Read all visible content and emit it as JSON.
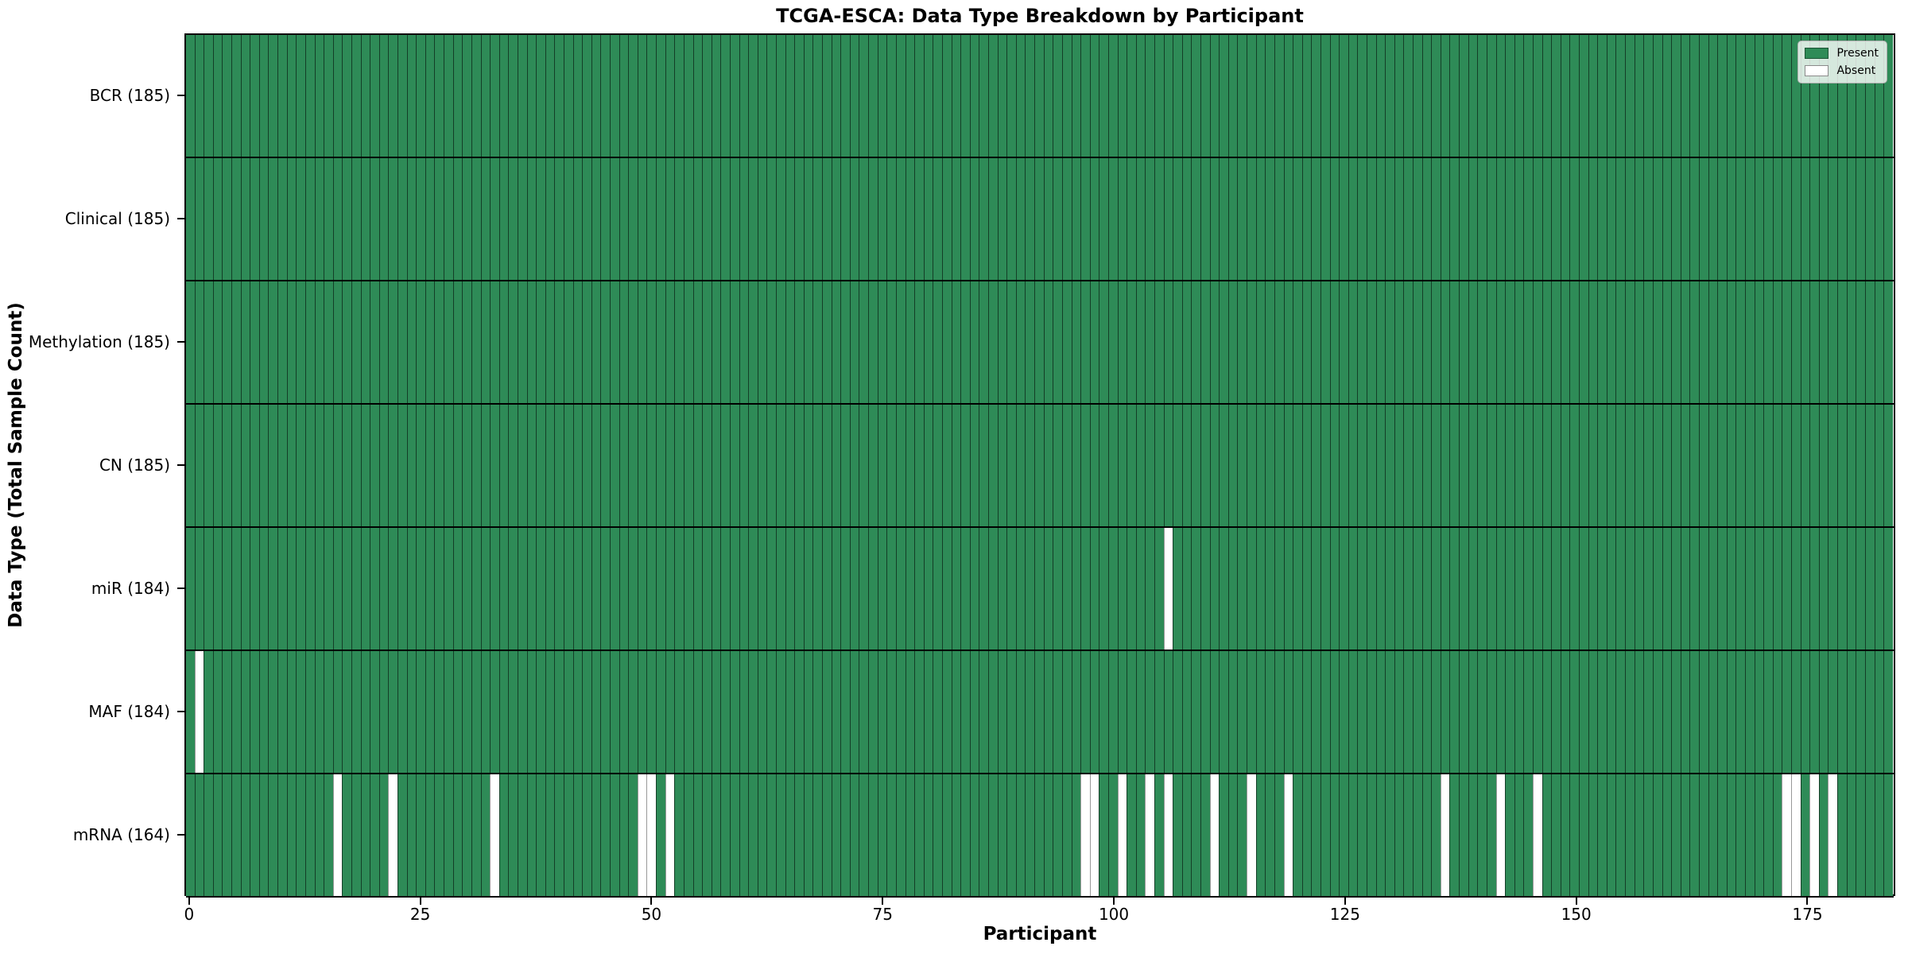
{
  "chart_data": {
    "type": "heatmap",
    "title": "TCGA-ESCA: Data Type Breakdown by Participant",
    "xlabel": "Participant",
    "ylabel": "Data Type (Total Sample Count)",
    "n_participants": 185,
    "x_range": [
      0,
      184
    ],
    "x_ticks": [
      0,
      25,
      50,
      75,
      100,
      125,
      150,
      175
    ],
    "legend_position": "upper right",
    "grid": false,
    "legend": {
      "present": "Present",
      "absent": "Absent"
    },
    "colors": {
      "present": "#2E8B57",
      "absent": "#FFFFFF",
      "cell_edge": "rgba(0,0,0,0.55)"
    },
    "rows": [
      {
        "data_type": "BCR",
        "label": "BCR (185)",
        "present_count": 185,
        "absent_participants": []
      },
      {
        "data_type": "Clinical",
        "label": "Clinical (185)",
        "present_count": 185,
        "absent_participants": []
      },
      {
        "data_type": "Methylation",
        "label": "Methylation (185)",
        "present_count": 185,
        "absent_participants": []
      },
      {
        "data_type": "CN",
        "label": "CN (185)",
        "present_count": 185,
        "absent_participants": []
      },
      {
        "data_type": "miR",
        "label": "miR (184)",
        "present_count": 184,
        "absent_participants": [
          106
        ]
      },
      {
        "data_type": "MAF",
        "label": "MAF (184)",
        "present_count": 184,
        "absent_participants": [
          1
        ]
      },
      {
        "data_type": "mRNA",
        "label": "mRNA (164)",
        "present_count": 164,
        "absent_participants": [
          16,
          22,
          33,
          49,
          50,
          52,
          97,
          98,
          101,
          104,
          106,
          111,
          115,
          119,
          136,
          142,
          146,
          173,
          174,
          176,
          178
        ]
      }
    ]
  }
}
